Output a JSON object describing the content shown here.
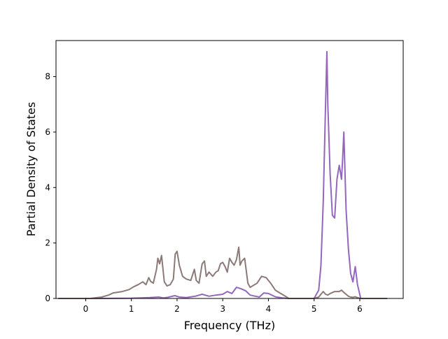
{
  "chart_data": {
    "type": "line",
    "title": "",
    "xlabel": "Frequency (THz)",
    "ylabel": "Partial Density of States",
    "xlim": [
      -0.65,
      6.95
    ],
    "ylim": [
      0,
      9.3
    ],
    "xticks": [
      0,
      1,
      2,
      3,
      4,
      5,
      6
    ],
    "yticks": [
      0,
      2,
      4,
      6,
      8
    ],
    "grid": false,
    "legend": "none",
    "series": [
      {
        "color": "#9467bd",
        "x": [
          -0.6,
          0.2,
          1.0,
          1.2,
          1.4,
          1.6,
          1.7,
          1.8,
          1.95,
          2.05,
          2.2,
          2.4,
          2.55,
          2.7,
          2.85,
          3.0,
          3.1,
          3.2,
          3.3,
          3.4,
          3.5,
          3.6,
          3.8,
          3.9,
          4.0,
          4.15,
          4.3,
          4.45,
          5.0,
          5.1,
          5.15,
          5.2,
          5.25,
          5.28,
          5.3,
          5.35,
          5.4,
          5.45,
          5.5,
          5.55,
          5.6,
          5.62,
          5.65,
          5.7,
          5.75,
          5.8,
          5.85,
          5.9,
          5.95,
          6.02,
          6.1,
          6.6
        ],
        "y": [
          0,
          0,
          0.01,
          0.02,
          0.03,
          0.05,
          0.02,
          0.04,
          0.1,
          0.05,
          0.03,
          0.08,
          0.15,
          0.08,
          0.12,
          0.15,
          0.25,
          0.18,
          0.4,
          0.35,
          0.28,
          0.12,
          0.05,
          0.2,
          0.18,
          0.06,
          0.02,
          0,
          0,
          0.3,
          1.2,
          3.5,
          7.0,
          8.9,
          7.0,
          4.5,
          3.0,
          2.9,
          4.3,
          4.8,
          4.3,
          4.9,
          6.0,
          3.2,
          1.8,
          0.9,
          0.6,
          1.15,
          0.5,
          0,
          0,
          0
        ]
      },
      {
        "color": "#8c7a78",
        "x": [
          -0.6,
          0.1,
          0.35,
          0.5,
          0.6,
          0.8,
          0.95,
          1.05,
          1.15,
          1.25,
          1.32,
          1.38,
          1.42,
          1.48,
          1.55,
          1.58,
          1.62,
          1.66,
          1.72,
          1.78,
          1.85,
          1.92,
          1.96,
          2.0,
          2.05,
          2.12,
          2.2,
          2.3,
          2.38,
          2.42,
          2.48,
          2.55,
          2.6,
          2.64,
          2.7,
          2.78,
          2.85,
          2.9,
          2.95,
          3.0,
          3.05,
          3.1,
          3.15,
          3.2,
          3.25,
          3.3,
          3.35,
          3.38,
          3.42,
          3.48,
          3.55,
          3.6,
          3.65,
          3.75,
          3.85,
          3.95,
          4.05,
          4.15,
          4.25,
          4.35,
          4.45,
          5.0,
          5.1,
          5.15,
          5.2,
          5.25,
          5.3,
          5.35,
          5.45,
          5.55,
          5.6,
          5.65,
          5.7,
          5.75,
          5.8,
          5.85,
          5.9,
          5.95,
          6.02,
          6.1,
          6.6
        ],
        "y": [
          0,
          0,
          0.05,
          0.12,
          0.2,
          0.25,
          0.32,
          0.42,
          0.5,
          0.6,
          0.5,
          0.75,
          0.62,
          0.55,
          1.05,
          1.45,
          1.25,
          1.55,
          0.6,
          0.45,
          0.5,
          0.7,
          1.6,
          1.7,
          1.2,
          0.8,
          0.7,
          0.65,
          1.05,
          0.65,
          0.55,
          1.25,
          1.35,
          0.8,
          0.95,
          0.8,
          0.95,
          1.0,
          1.25,
          1.3,
          1.15,
          0.95,
          1.45,
          1.3,
          1.2,
          1.4,
          1.85,
          1.2,
          1.35,
          1.45,
          0.55,
          0.4,
          0.45,
          0.55,
          0.8,
          0.75,
          0.55,
          0.3,
          0.2,
          0.1,
          0,
          0,
          0.05,
          0.15,
          0.25,
          0.15,
          0.12,
          0.18,
          0.25,
          0.25,
          0.3,
          0.22,
          0.15,
          0.08,
          0.05,
          0.04,
          0.06,
          0.03,
          0,
          0,
          0
        ]
      }
    ]
  }
}
